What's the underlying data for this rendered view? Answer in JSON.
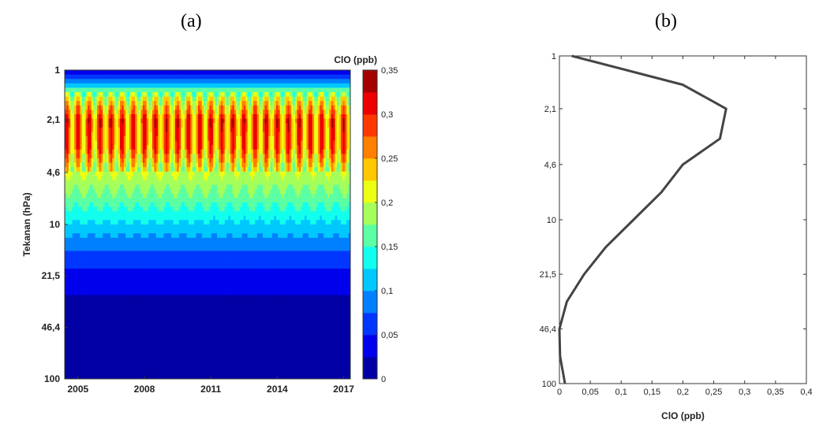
{
  "panels": {
    "a_label": "(a)",
    "b_label": "(b)"
  },
  "chart_data": [
    {
      "type": "heatmap",
      "ylabel": "Tekanan (hPa)",
      "yscale": "log",
      "yreversed": true,
      "ytick_values": [
        1,
        2.1,
        4.6,
        10,
        21.5,
        46.4,
        100
      ],
      "ytick_labels": [
        "1",
        "2,1",
        "4,6",
        "10",
        "21,5",
        "46,4",
        "100"
      ],
      "xlim": [
        2004.4,
        2017.3
      ],
      "xtick_values": [
        2005,
        2008,
        2011,
        2014,
        2017
      ],
      "xtick_labels": [
        "2005",
        "2008",
        "2011",
        "2014",
        "2017"
      ],
      "colorbar": {
        "label": "ClO (ppb)",
        "range": [
          0,
          0.35
        ],
        "tick_labels": [
          "0",
          "0,05",
          "0,1",
          "0,15",
          "0,2",
          "0,25",
          "0,3",
          "0,35"
        ]
      },
      "field": {
        "pressure_levels": [
          1,
          1.5,
          2.1,
          3.2,
          4.6,
          6.8,
          10,
          14.7,
          21.5,
          31.6,
          46.4,
          68,
          100
        ],
        "mean_profile": [
          0.02,
          0.2,
          0.27,
          0.26,
          0.2,
          0.165,
          0.12,
          0.075,
          0.04,
          0.02,
          0.003,
          0.002,
          0.01
        ]
      }
    },
    {
      "type": "line",
      "xlabel": "ClO (ppb)",
      "xlim": [
        0,
        0.4
      ],
      "xtick_values": [
        0,
        0.05,
        0.1,
        0.15,
        0.2,
        0.25,
        0.3,
        0.35,
        0.4
      ],
      "xtick_labels": [
        "0",
        "0,05",
        "0,1",
        "0,15",
        "0,2",
        "0,25",
        "0,3",
        "0,35",
        "0,4"
      ],
      "yscale": "log",
      "yreversed": true,
      "ytick_values": [
        1,
        2.1,
        4.6,
        10,
        21.5,
        46.4,
        100
      ],
      "ytick_labels": [
        "1",
        "2,1",
        "4,6",
        "10",
        "21,5",
        "46,4",
        "100"
      ],
      "series": [
        {
          "x": [
            0.02,
            0.2,
            0.27,
            0.26,
            0.2,
            0.165,
            0.12,
            0.075,
            0.04,
            0.012,
            0.0,
            0.001,
            0.009
          ],
          "y": [
            1,
            1.5,
            2.1,
            3.2,
            4.6,
            6.8,
            10,
            14.7,
            21.5,
            31.6,
            46.4,
            68,
            100
          ]
        }
      ]
    }
  ]
}
